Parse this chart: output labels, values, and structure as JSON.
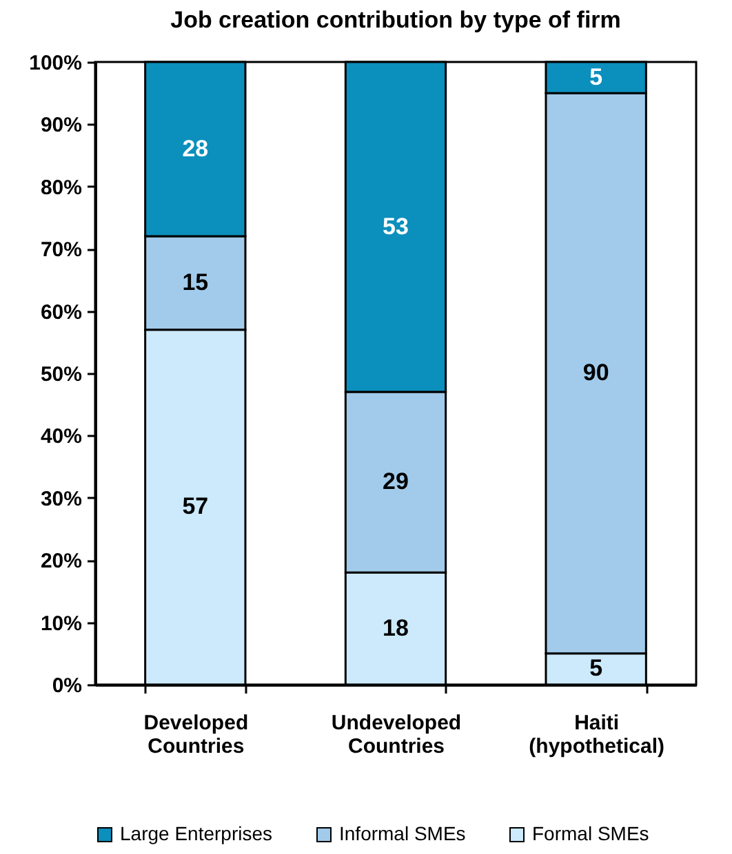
{
  "chart_data": {
    "type": "bar",
    "title": "Job creation contribution by type of firm",
    "categories": [
      "Developed Countries",
      "Undeveloped Countries",
      "Haiti (hypothetical)"
    ],
    "stacked": true,
    "data_labels": true,
    "legend": "bottom",
    "grid": false,
    "series": [
      {
        "name": "Formal SMEs",
        "color": "#cceafb",
        "values": [
          57,
          18,
          5
        ]
      },
      {
        "name": "Informal SMEs",
        "color": "#a2cbeb",
        "values": [
          15,
          29,
          90
        ]
      },
      {
        "name": "Large Enterprises",
        "color": "#0b8fbd",
        "values": [
          28,
          53,
          5
        ]
      }
    ],
    "ylim": [
      0,
      100
    ],
    "yticks": [
      {
        "value": 0,
        "label": "0%"
      },
      {
        "value": 10,
        "label": "10%"
      },
      {
        "value": 20,
        "label": "20%"
      },
      {
        "value": 30,
        "label": "30%"
      },
      {
        "value": 40,
        "label": "40%"
      },
      {
        "value": 50,
        "label": "50%"
      },
      {
        "value": 60,
        "label": "60%"
      },
      {
        "value": 70,
        "label": "70%"
      },
      {
        "value": 80,
        "label": "80%"
      },
      {
        "value": 90,
        "label": "90%"
      },
      {
        "value": 100,
        "label": "100%"
      }
    ]
  }
}
